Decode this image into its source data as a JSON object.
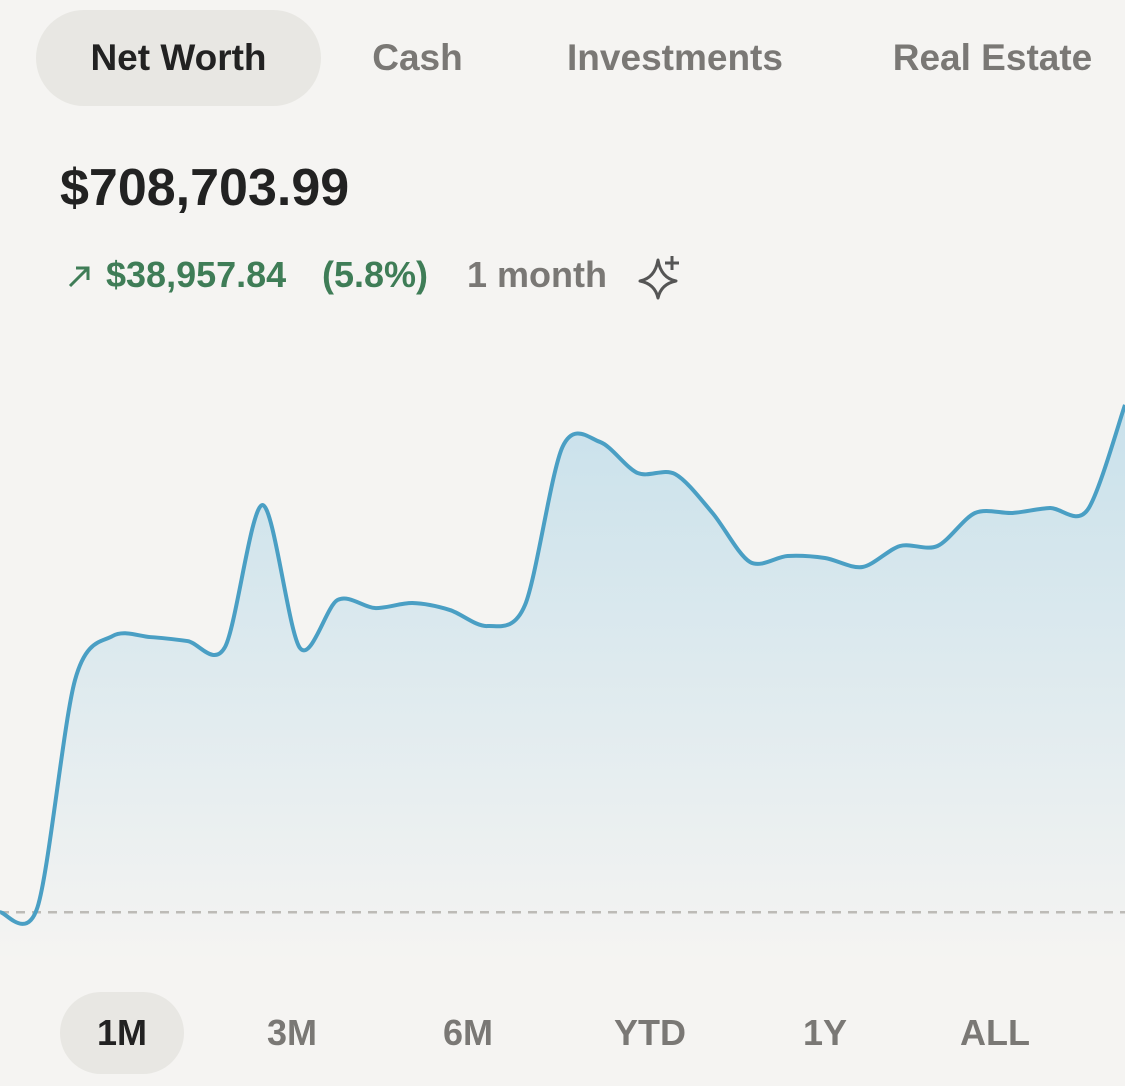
{
  "tabs": [
    "Net Worth",
    "Cash",
    "Investments",
    "Real Estate"
  ],
  "balance": "$708,703.99",
  "change": {
    "amount": "$38,957.84",
    "percent": "(5.8%)",
    "period": "1 month"
  },
  "chart_data": {
    "type": "line",
    "color": "#4a9fc4",
    "values": [
      669746,
      670130,
      687573,
      690954,
      690877,
      690570,
      690109,
      701020,
      690032,
      693720,
      693105,
      693490,
      692952,
      691722,
      693336,
      705477,
      705861,
      703479,
      703402,
      700405,
      696640,
      697101,
      696947,
      696256,
      697869,
      697869,
      700405,
      700405,
      700789,
      700636,
      708704
    ],
    "ylim": [
      666000,
      712000
    ]
  },
  "ranges": [
    "1M",
    "3M",
    "6M",
    "YTD",
    "1Y",
    "ALL"
  ]
}
